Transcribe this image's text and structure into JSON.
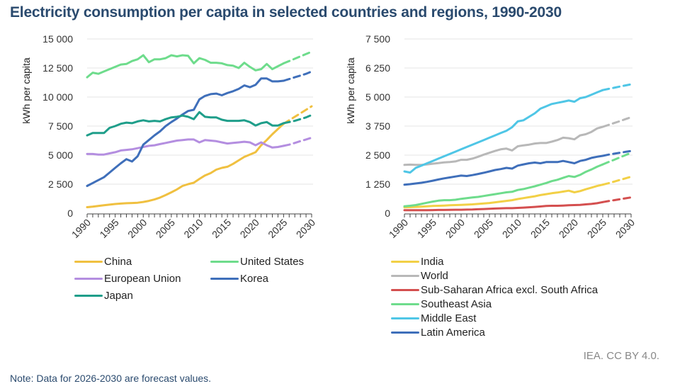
{
  "title": "Electricity consumption per capita in selected countries and regions, 1990-2030",
  "source": "IEA. CC BY 4.0.",
  "note": "Note: Data for 2026-2030 are forecast values.",
  "chart_data": [
    {
      "type": "line",
      "title": "",
      "ylabel": "kWh per capita",
      "xlabel": "",
      "ylim": [
        0,
        15000
      ],
      "yticks": [
        0,
        2500,
        5000,
        7500,
        10000,
        12500,
        15000
      ],
      "ytick_labels": [
        "0",
        "2 500",
        "5 000",
        "7 500",
        "10 000",
        "12 500",
        "15 000"
      ],
      "xlim": [
        1990,
        2030
      ],
      "xtick_labels": [
        "1990",
        "1995",
        "2000",
        "2005",
        "2010",
        "2015",
        "2020",
        "2025",
        "2030"
      ],
      "forecast_start": 2025,
      "grid": true,
      "legend_position": "bottom",
      "x": [
        1990,
        1991,
        1992,
        1993,
        1994,
        1995,
        1996,
        1997,
        1998,
        1999,
        2000,
        2001,
        2002,
        2003,
        2004,
        2005,
        2006,
        2007,
        2008,
        2009,
        2010,
        2011,
        2012,
        2013,
        2014,
        2015,
        2016,
        2017,
        2018,
        2019,
        2020,
        2021,
        2022,
        2023,
        2024,
        2025,
        2026,
        2027,
        2028,
        2029,
        2030
      ],
      "series": [
        {
          "name": "China",
          "color": "#f0c040",
          "values": [
            520,
            560,
            620,
            680,
            740,
            790,
            830,
            860,
            880,
            900,
            970,
            1060,
            1180,
            1350,
            1560,
            1800,
            2050,
            2350,
            2500,
            2620,
            2950,
            3250,
            3450,
            3750,
            3900,
            4000,
            4250,
            4550,
            4850,
            5050,
            5250,
            5850,
            6300,
            6800,
            7250,
            7700,
            8000,
            8300,
            8600,
            8900,
            9200
          ]
        },
        {
          "name": "United States",
          "color": "#6edc8c",
          "values": [
            11700,
            12100,
            12000,
            12200,
            12400,
            12600,
            12800,
            12850,
            13100,
            13250,
            13600,
            13000,
            13250,
            13250,
            13350,
            13600,
            13500,
            13600,
            13550,
            12900,
            13350,
            13200,
            12950,
            12950,
            12900,
            12750,
            12700,
            12500,
            12950,
            12600,
            12300,
            12400,
            12850,
            12400,
            12650,
            12900,
            13100,
            13300,
            13500,
            13700,
            13900
          ]
        },
        {
          "name": "European Union",
          "color": "#b48ee0",
          "values": [
            5100,
            5100,
            5050,
            5050,
            5150,
            5250,
            5400,
            5450,
            5500,
            5600,
            5700,
            5800,
            5850,
            5950,
            6050,
            6150,
            6250,
            6300,
            6350,
            6350,
            6100,
            6300,
            6250,
            6200,
            6100,
            6000,
            6050,
            6100,
            6150,
            6100,
            5850,
            6100,
            5850,
            5650,
            5700,
            5800,
            5900,
            6050,
            6200,
            6350,
            6500
          ]
        },
        {
          "name": "Korea",
          "color": "#3f6fba",
          "values": [
            2350,
            2600,
            2850,
            3100,
            3500,
            3900,
            4300,
            4650,
            4450,
            4900,
            5900,
            6300,
            6700,
            7050,
            7500,
            7850,
            8150,
            8500,
            8800,
            8900,
            9800,
            10100,
            10250,
            10300,
            10150,
            10350,
            10500,
            10700,
            11000,
            10850,
            11050,
            11600,
            11600,
            11350,
            11350,
            11400,
            11550,
            11700,
            11850,
            12000,
            12200
          ]
        },
        {
          "name": "Japan",
          "color": "#1f9e8a",
          "values": [
            6700,
            6900,
            6900,
            6900,
            7350,
            7500,
            7700,
            7800,
            7750,
            7900,
            8000,
            7900,
            7950,
            7900,
            8100,
            8250,
            8300,
            8400,
            8300,
            8100,
            8700,
            8300,
            8250,
            8250,
            8050,
            7950,
            7950,
            7950,
            8000,
            7850,
            7550,
            7750,
            7850,
            7550,
            7550,
            7750,
            7850,
            7950,
            8100,
            8250,
            8450
          ]
        }
      ]
    },
    {
      "type": "line",
      "title": "",
      "ylabel": "kWh per capita",
      "xlabel": "",
      "ylim": [
        0,
        7500
      ],
      "yticks": [
        0,
        1250,
        2500,
        3750,
        5000,
        6250,
        7500
      ],
      "ytick_labels": [
        "0",
        "1 250",
        "2 500",
        "3 750",
        "5 000",
        "6 250",
        "7 500"
      ],
      "xlim": [
        1990,
        2030
      ],
      "xtick_labels": [
        "1990",
        "1995",
        "2000",
        "2005",
        "2010",
        "2015",
        "2020",
        "2025",
        "2030"
      ],
      "forecast_start": 2025,
      "grid": true,
      "legend_position": "bottom",
      "x": [
        1990,
        1991,
        1992,
        1993,
        1994,
        1995,
        1996,
        1997,
        1998,
        1999,
        2000,
        2001,
        2002,
        2003,
        2004,
        2005,
        2006,
        2007,
        2008,
        2009,
        2010,
        2011,
        2012,
        2013,
        2014,
        2015,
        2016,
        2017,
        2018,
        2019,
        2020,
        2021,
        2022,
        2023,
        2024,
        2025,
        2026,
        2027,
        2028,
        2029,
        2030
      ],
      "series": [
        {
          "name": "India",
          "color": "#f2d046",
          "values": [
            250,
            260,
            270,
            285,
            300,
            310,
            320,
            330,
            340,
            350,
            360,
            370,
            380,
            400,
            420,
            440,
            470,
            500,
            530,
            560,
            610,
            650,
            690,
            730,
            780,
            820,
            860,
            890,
            930,
            970,
            900,
            950,
            1030,
            1100,
            1170,
            1230,
            1290,
            1360,
            1430,
            1500,
            1570
          ]
        },
        {
          "name": "World",
          "color": "#b8b8b8",
          "values": [
            2080,
            2090,
            2080,
            2080,
            2100,
            2130,
            2160,
            2190,
            2200,
            2230,
            2300,
            2300,
            2350,
            2430,
            2520,
            2600,
            2680,
            2750,
            2780,
            2700,
            2880,
            2920,
            2950,
            3000,
            3020,
            3020,
            3080,
            3150,
            3250,
            3230,
            3180,
            3350,
            3400,
            3500,
            3650,
            3720,
            3800,
            3880,
            3960,
            4050,
            4130
          ]
        },
        {
          "name": "Sub-Saharan Africa excl. South Africa",
          "color": "#d44f4f",
          "values": [
            130,
            130,
            130,
            130,
            130,
            135,
            140,
            140,
            145,
            150,
            150,
            155,
            160,
            170,
            180,
            190,
            200,
            210,
            215,
            215,
            230,
            240,
            255,
            270,
            290,
            310,
            320,
            320,
            330,
            340,
            350,
            360,
            380,
            400,
            430,
            480,
            520,
            560,
            600,
            640,
            680
          ]
        },
        {
          "name": "Southeast Asia",
          "color": "#6edc8c",
          "values": [
            300,
            320,
            350,
            400,
            450,
            500,
            540,
            560,
            560,
            580,
            620,
            650,
            680,
            700,
            740,
            780,
            820,
            860,
            900,
            920,
            1000,
            1040,
            1100,
            1160,
            1230,
            1300,
            1380,
            1440,
            1520,
            1600,
            1560,
            1650,
            1780,
            1880,
            2000,
            2100,
            2200,
            2300,
            2400,
            2500,
            2600
          ]
        },
        {
          "name": "Middle East",
          "color": "#4fc6e6",
          "values": [
            1800,
            1750,
            1950,
            2050,
            2150,
            2250,
            2350,
            2450,
            2550,
            2650,
            2750,
            2850,
            2950,
            3050,
            3150,
            3250,
            3350,
            3450,
            3550,
            3700,
            3950,
            4000,
            4150,
            4300,
            4500,
            4600,
            4700,
            4750,
            4800,
            4850,
            4800,
            4950,
            5000,
            5100,
            5200,
            5300,
            5350,
            5400,
            5450,
            5500,
            5550
          ]
        },
        {
          "name": "Latin America",
          "color": "#3f6fba",
          "values": [
            1230,
            1250,
            1280,
            1310,
            1350,
            1400,
            1450,
            1500,
            1540,
            1580,
            1620,
            1600,
            1640,
            1690,
            1740,
            1800,
            1860,
            1900,
            1950,
            1920,
            2050,
            2100,
            2150,
            2180,
            2150,
            2200,
            2200,
            2200,
            2250,
            2200,
            2150,
            2250,
            2300,
            2380,
            2430,
            2470,
            2520,
            2560,
            2600,
            2640,
            2680
          ]
        }
      ]
    }
  ]
}
